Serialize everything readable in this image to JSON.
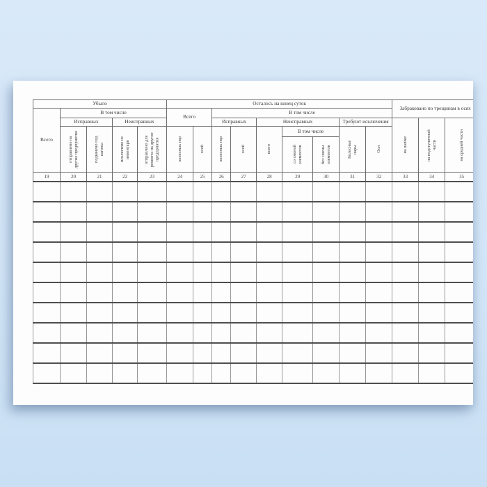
{
  "colors": {
    "background_top": "#d9e9f9",
    "background_bottom": "#c9dff3",
    "paper": "#fdfdfd",
    "line_dark": "#4e4e4e",
    "line_light": "#979797",
    "text": "#3b3b3b"
  },
  "table": {
    "section_ubylo": "Убыло",
    "section_ostalos": "Осталось на конец суток",
    "section_zabrakovano": "Забраковано по трещинам в осях",
    "group_v_tom_chisle": "В том числе",
    "group_vsego": "Всего",
    "group_ispravnykh": "Исправных",
    "group_neispravnykh": "Неисправных",
    "group_trebuyut_isklyucheniya": "Требуют исключения",
    "col_labels": {
      "c19": "Всего",
      "c20": "отправлено на другие предприятия",
      "c21": "подкачено под вагоны",
      "c22": "исключено из инвентаря",
      "c23": "отправлено для ремонта на другие предприятия",
      "c24": "колесных пар",
      "c25": "осей",
      "c26": "колесных пар",
      "c27": "осей",
      "c28": "всего",
      "c29": "со сменой элементов",
      "c30": "без смены элементов",
      "c31": "Колесные пары",
      "c32": "Оси",
      "c33": "на шейке",
      "c34": "на подступичной части",
      "c35": "на средней части"
    },
    "column_numbers": [
      "19",
      "20",
      "21",
      "22",
      "23",
      "24",
      "25",
      "26",
      "27",
      "28",
      "29",
      "30",
      "31",
      "32",
      "33",
      "34",
      "35"
    ],
    "body_rows": 10,
    "body_columns": 17
  }
}
